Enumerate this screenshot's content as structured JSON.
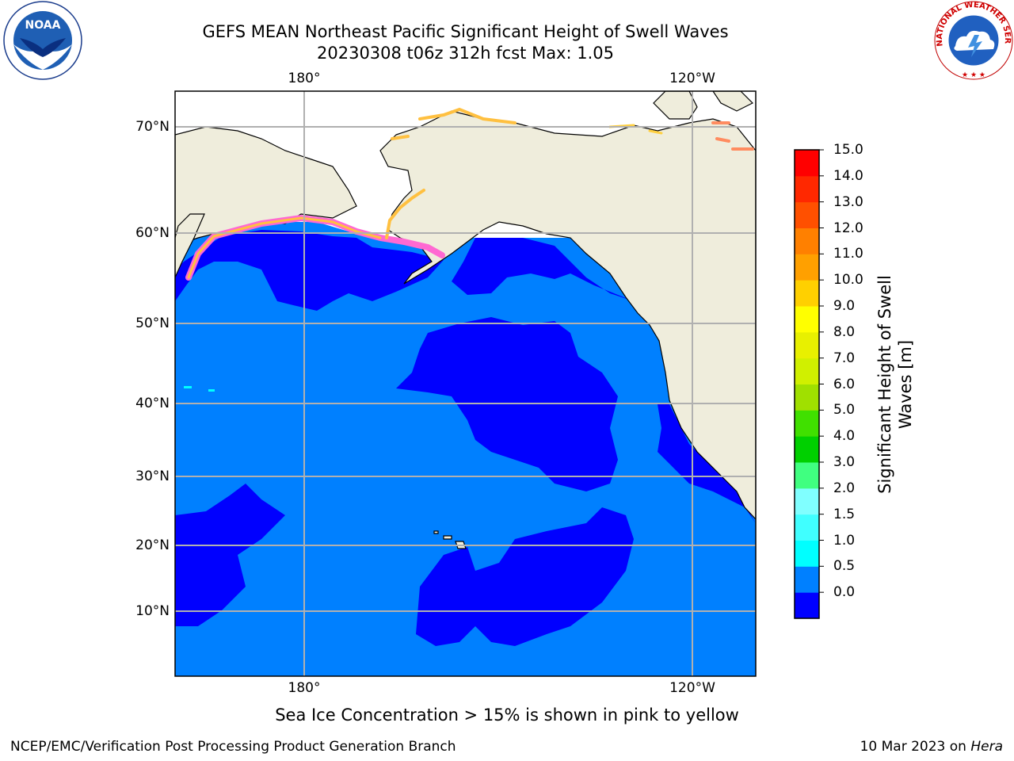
{
  "title": {
    "line1": "GEFS MEAN Northeast Pacific Significant Height of Swell Waves",
    "line2": "20230308 t06z 312h fcst   Max: 1.05"
  },
  "map": {
    "lon_labels_top": [
      "180°",
      "120°W"
    ],
    "lon_labels_bottom": [
      "180°",
      "120°W"
    ],
    "lat_labels": [
      "70°N",
      "60°N",
      "50°N",
      "40°N",
      "30°N",
      "20°N",
      "10°N"
    ],
    "colors": {
      "ocean_light": "#0080ff",
      "ocean_dark": "#0000ff",
      "land": "#efeddc",
      "ice_pink": "#ff69d2",
      "ice_yellow": "#ffc040",
      "grid": "#b0b0b0"
    }
  },
  "colorbar": {
    "label": "Significant Height of Swell Waves [m]",
    "ticks": [
      "15.0",
      "14.0",
      "13.0",
      "12.0",
      "11.0",
      "10.0",
      "9.0",
      "8.0",
      "7.0",
      "6.0",
      "5.0",
      "4.0",
      "3.0",
      "2.0",
      "1.5",
      "1.0",
      "0.5",
      "0.0"
    ],
    "colors": [
      "#0000ff",
      "#0080ff",
      "#00ffff",
      "#40ffff",
      "#80ffff",
      "#40ff80",
      "#00d000",
      "#40e000",
      "#a0e000",
      "#d0f000",
      "#e8f000",
      "#ffff00",
      "#ffd000",
      "#ffa000",
      "#ff8000",
      "#ff5000",
      "#ff2800",
      "#ff0000"
    ]
  },
  "footnote": "Sea Ice Concentration > 15% is shown in pink to yellow",
  "credit": "NCEP/EMC/Verification Post Processing Product Generation Branch",
  "date": "10 Mar 2023 on ",
  "date_host": "Hera",
  "logos": {
    "left": "noaa-logo",
    "left_text": "NOAA",
    "right": "nws-logo",
    "right_text": "NATIONAL WEATHER SERVICE"
  }
}
